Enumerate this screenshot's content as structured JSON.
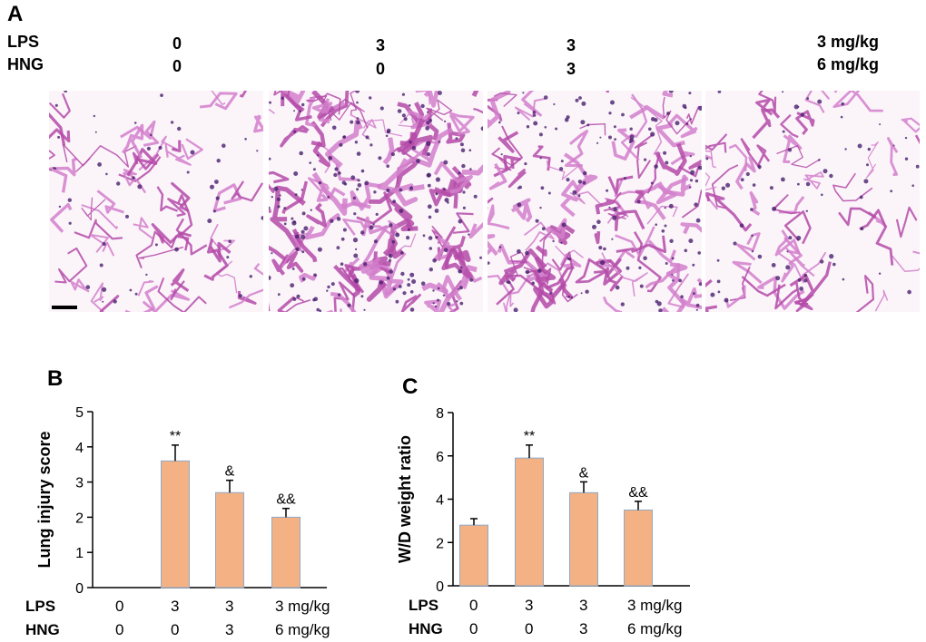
{
  "panel_a": {
    "letter": "A",
    "row_labels": [
      "LPS",
      "HNG"
    ],
    "lps_values": [
      "0",
      "3",
      "3",
      "3 mg/kg"
    ],
    "hng_values": [
      "0",
      "0",
      "3",
      "6 mg/kg"
    ]
  },
  "chart_data": [
    {
      "type": "bar",
      "panel_letter": "B",
      "title": "",
      "ylabel": "Lung injury score",
      "xlabel": "",
      "ylim": [
        0,
        5
      ],
      "yticks": [
        0,
        1,
        2,
        3,
        4,
        5
      ],
      "categories": [
        "0/0",
        "3/0",
        "3/3",
        "3 mg/kg/6 mg/kg"
      ],
      "values": [
        0,
        3.6,
        2.7,
        2.0
      ],
      "errors": [
        0,
        0.45,
        0.35,
        0.25
      ],
      "annotations": [
        "",
        "**",
        "&",
        "&&"
      ],
      "bar_color": "#F4B183",
      "row_labels": [
        "LPS",
        "HNG"
      ],
      "lps_values": [
        "0",
        "3",
        "3",
        "3 mg/kg"
      ],
      "hng_values": [
        "0",
        "0",
        "3",
        "6 mg/kg"
      ]
    },
    {
      "type": "bar",
      "panel_letter": "C",
      "title": "",
      "ylabel": "W/D weight ratio",
      "xlabel": "",
      "ylim": [
        0,
        8
      ],
      "yticks": [
        0,
        2,
        4,
        6,
        8
      ],
      "categories": [
        "0/0",
        "3/0",
        "3/3",
        "3 mg/kg/6 mg/kg"
      ],
      "values": [
        2.8,
        5.9,
        4.3,
        3.5
      ],
      "errors": [
        0.3,
        0.6,
        0.5,
        0.4
      ],
      "annotations": [
        "",
        "**",
        "&",
        "&&"
      ],
      "bar_color": "#F4B183",
      "row_labels": [
        "LPS",
        "HNG"
      ],
      "lps_values": [
        "0",
        "3",
        "3",
        "3 mg/kg"
      ],
      "hng_values": [
        "0",
        "0",
        "3",
        "6 mg/kg"
      ]
    }
  ]
}
